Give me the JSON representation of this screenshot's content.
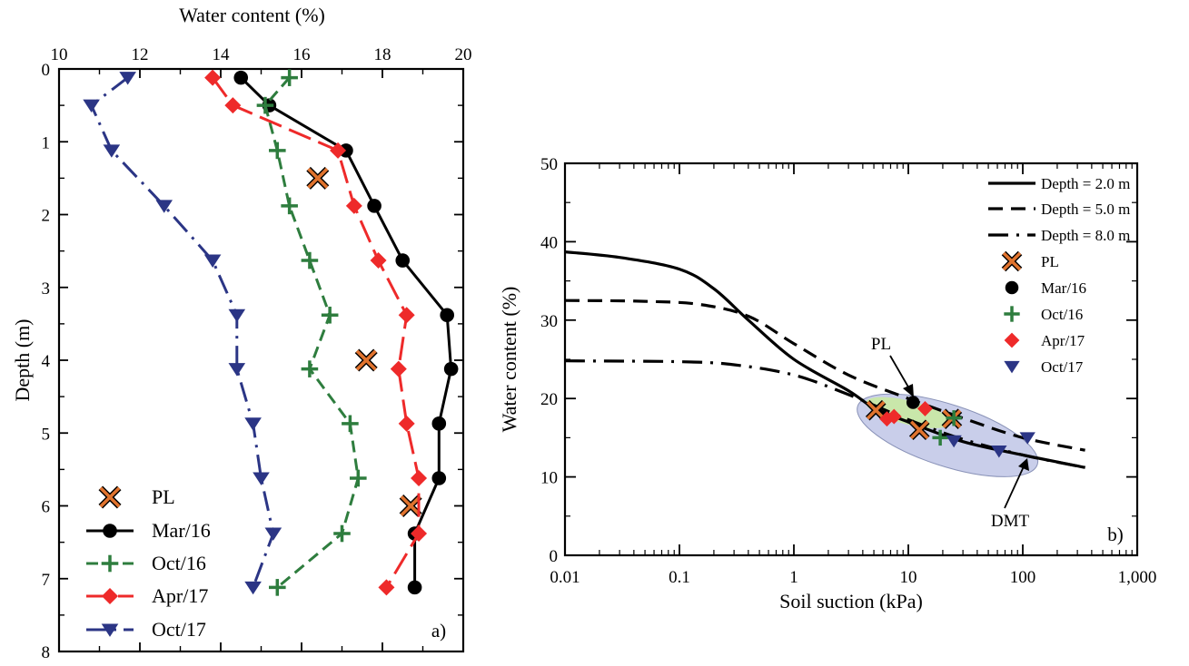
{
  "colors": {
    "mar16": "#000000",
    "oct16": "#2e7d3e",
    "apr17": "#ee2a2a",
    "oct17": "#2b3585",
    "pl_fill": "#e0732e",
    "ellipse_fill": "#bfc6e6",
    "green_region": "#c9e8a6"
  },
  "chart_data": [
    {
      "type": "line",
      "panel_label": "a)",
      "xlabel": "Water content (%)",
      "ylabel": "Depth (m)",
      "xlim": [
        10,
        20
      ],
      "ylim": [
        8,
        0
      ],
      "x_ticks": [
        10,
        12,
        14,
        16,
        18,
        20
      ],
      "y_ticks": [
        0,
        1,
        2,
        3,
        4,
        5,
        6,
        7,
        8
      ],
      "legend_position": "bottom-left",
      "legend": [
        "PL",
        "Mar/16",
        "Oct/16",
        "Apr/17",
        "Oct/17"
      ],
      "series": [
        {
          "name": "PL",
          "marker": "x",
          "points": [
            [
              16.4,
              1.5
            ],
            [
              17.6,
              4.0
            ],
            [
              18.7,
              6.0
            ]
          ]
        },
        {
          "name": "Mar/16",
          "marker": "circle",
          "line": "solid",
          "points": [
            [
              14.5,
              0.12
            ],
            [
              15.2,
              0.5
            ],
            [
              17.1,
              1.12
            ],
            [
              17.8,
              1.88
            ],
            [
              18.5,
              2.63
            ],
            [
              19.6,
              3.38
            ],
            [
              19.7,
              4.12
            ],
            [
              19.4,
              4.87
            ],
            [
              19.4,
              5.62
            ],
            [
              18.8,
              6.38
            ],
            [
              18.8,
              7.12
            ]
          ]
        },
        {
          "name": "Oct/16",
          "marker": "plus",
          "line": "dashed",
          "points": [
            [
              15.7,
              0.12
            ],
            [
              15.1,
              0.5
            ],
            [
              15.4,
              1.12
            ],
            [
              15.7,
              1.88
            ],
            [
              16.2,
              2.63
            ],
            [
              16.7,
              3.38
            ],
            [
              16.2,
              4.12
            ],
            [
              17.2,
              4.87
            ],
            [
              17.4,
              5.62
            ],
            [
              17.0,
              6.38
            ],
            [
              15.4,
              7.12
            ]
          ]
        },
        {
          "name": "Apr/17",
          "marker": "diamond",
          "line": "long-dash",
          "points": [
            [
              13.8,
              0.12
            ],
            [
              14.3,
              0.5
            ],
            [
              16.9,
              1.12
            ],
            [
              17.3,
              1.88
            ],
            [
              17.9,
              2.63
            ],
            [
              18.6,
              3.38
            ],
            [
              18.4,
              4.12
            ],
            [
              18.6,
              4.87
            ],
            [
              18.9,
              5.62
            ],
            [
              18.9,
              6.38
            ],
            [
              18.1,
              7.12
            ]
          ]
        },
        {
          "name": "Oct/17",
          "marker": "triangle-down",
          "line": "dash-dot",
          "points": [
            [
              11.7,
              0.12
            ],
            [
              10.8,
              0.5
            ],
            [
              11.3,
              1.12
            ],
            [
              12.6,
              1.88
            ],
            [
              13.8,
              2.63
            ],
            [
              14.4,
              3.38
            ],
            [
              14.4,
              4.12
            ],
            [
              14.8,
              4.87
            ],
            [
              15.0,
              5.62
            ],
            [
              15.3,
              6.38
            ],
            [
              14.8,
              7.12
            ]
          ]
        }
      ]
    },
    {
      "type": "scatter",
      "panel_label": "b)",
      "xlabel": "Soil suction (kPa)",
      "ylabel": "Water content (%)",
      "xscale": "log",
      "xlim": [
        0.01,
        1000
      ],
      "ylim": [
        0,
        50
      ],
      "x_ticks": [
        "0.01",
        "0.1",
        "1",
        "10",
        "100",
        "1,000"
      ],
      "y_ticks": [
        0,
        10,
        20,
        30,
        40,
        50
      ],
      "legend_position": "top-right",
      "legend": [
        "Depth = 2.0 m",
        "Depth = 5.0 m",
        "Depth = 8.0 m",
        "PL",
        "Mar/16",
        "Oct/16",
        "Apr/17",
        "Oct/17"
      ],
      "annotations": [
        "PL",
        "DMT"
      ],
      "curves": [
        {
          "name": "Depth = 2.0 m",
          "line": "solid",
          "points": [
            [
              0.01,
              38.7
            ],
            [
              0.03,
              38.0
            ],
            [
              0.1,
              36.5
            ],
            [
              0.2,
              34.0
            ],
            [
              0.4,
              30.0
            ],
            [
              1.0,
              25.0
            ],
            [
              3.0,
              21.0
            ],
            [
              5.0,
              18.8
            ],
            [
              10.0,
              17.0
            ],
            [
              30.0,
              14.5
            ],
            [
              100.0,
              12.8
            ],
            [
              350.0,
              11.2
            ]
          ]
        },
        {
          "name": "Depth = 5.0 m",
          "line": "dashed",
          "points": [
            [
              0.01,
              32.5
            ],
            [
              0.05,
              32.4
            ],
            [
              0.15,
              32.0
            ],
            [
              0.4,
              30.5
            ],
            [
              1.0,
              27.0
            ],
            [
              3.0,
              23.0
            ],
            [
              10.0,
              20.0
            ],
            [
              30.0,
              17.5
            ],
            [
              100.0,
              15.0
            ],
            [
              350.0,
              13.4
            ]
          ]
        },
        {
          "name": "Depth = 8.0 m",
          "line": "dash-dot",
          "points": [
            [
              0.01,
              24.8
            ],
            [
              0.1,
              24.7
            ],
            [
              0.3,
              24.3
            ],
            [
              1.0,
              23.0
            ],
            [
              3.0,
              20.5
            ],
            [
              10.0,
              17.3
            ],
            [
              30.0,
              14.8
            ],
            [
              100.0,
              12.8
            ],
            [
              350.0,
              11.2
            ]
          ]
        }
      ],
      "series": [
        {
          "name": "PL",
          "marker": "x",
          "points": [
            [
              5.2,
              18.5
            ],
            [
              12.5,
              16.0
            ],
            [
              24.0,
              17.4
            ]
          ]
        },
        {
          "name": "Mar/16",
          "marker": "circle",
          "points": [
            [
              11.0,
              19.5
            ]
          ]
        },
        {
          "name": "Oct/16",
          "marker": "plus",
          "points": [
            [
              19.0,
              15.0
            ],
            [
              25.0,
              17.5
            ]
          ]
        },
        {
          "name": "Apr/17",
          "marker": "diamond",
          "points": [
            [
              6.5,
              17.4
            ],
            [
              7.5,
              17.7
            ],
            [
              14.0,
              18.7
            ]
          ]
        },
        {
          "name": "Oct/17",
          "marker": "triangle-down",
          "points": [
            [
              25.0,
              14.6
            ],
            [
              62.0,
              13.3
            ],
            [
              110.0,
              15.0
            ]
          ]
        }
      ]
    }
  ]
}
